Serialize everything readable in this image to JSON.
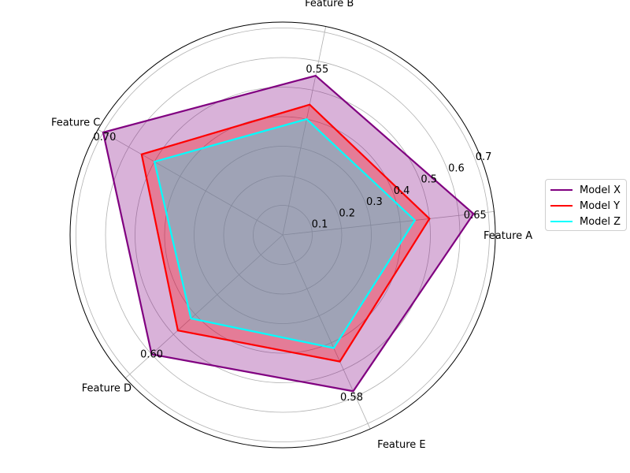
{
  "chart_data": {
    "type": "radar",
    "categories": [
      "Feature A",
      "Feature B",
      "Feature C",
      "Feature D",
      "Feature E"
    ],
    "series": [
      {
        "name": "Model X",
        "values": [
          0.65,
          0.55,
          0.7,
          0.6,
          0.58
        ],
        "color": "#800080",
        "fill": "#800080",
        "fill_alpha": 0.3
      },
      {
        "name": "Model Y",
        "values": [
          0.5,
          0.45,
          0.55,
          0.48,
          0.47
        ],
        "color": "#ff0000",
        "fill": "#ff0000",
        "fill_alpha": 0.3
      },
      {
        "name": "Model Z",
        "values": [
          0.45,
          0.4,
          0.5,
          0.42,
          0.42
        ],
        "color": "#00ffff",
        "fill": "#00ffff",
        "fill_alpha": 0.3
      }
    ],
    "radial_ticks": [
      0.1,
      0.2,
      0.3,
      0.4,
      0.5,
      0.6,
      0.7
    ],
    "radial_tick_labels": [
      "0.1",
      "0.2",
      "0.3",
      "0.4",
      "0.5",
      "0.6",
      "0.7"
    ],
    "ylim": [
      0,
      0.72
    ],
    "value_labels": [
      "0.65",
      "0.55",
      "0.70",
      "0.60",
      "0.58"
    ],
    "grid": true,
    "legend_position": "right"
  }
}
